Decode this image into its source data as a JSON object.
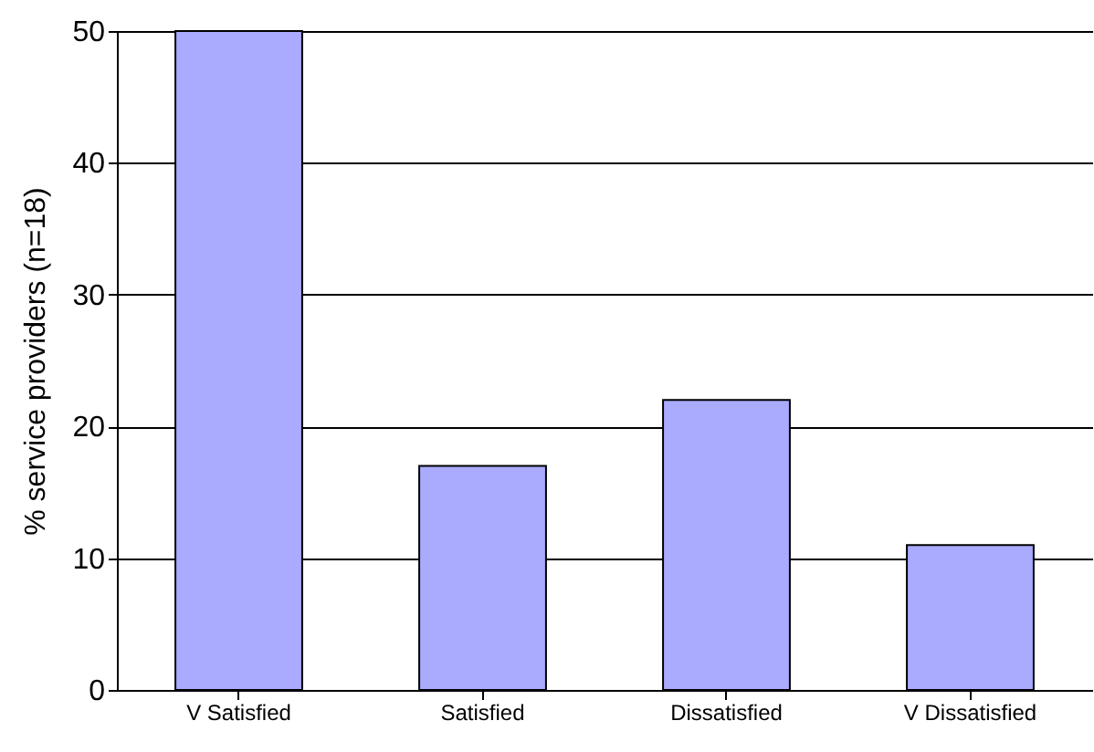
{
  "chart_data": {
    "type": "bar",
    "ylabel": "% service providers (n=18)",
    "categories": [
      "V Satisfied",
      "Satisfied",
      "Dissatisfied",
      "V Dissatisfied"
    ],
    "values": [
      50,
      17,
      22,
      11
    ],
    "color": "#aaaaff",
    "ylim": [
      0,
      50
    ],
    "yticks": [
      0,
      10,
      20,
      30,
      40,
      50
    ],
    "grid": "y"
  }
}
